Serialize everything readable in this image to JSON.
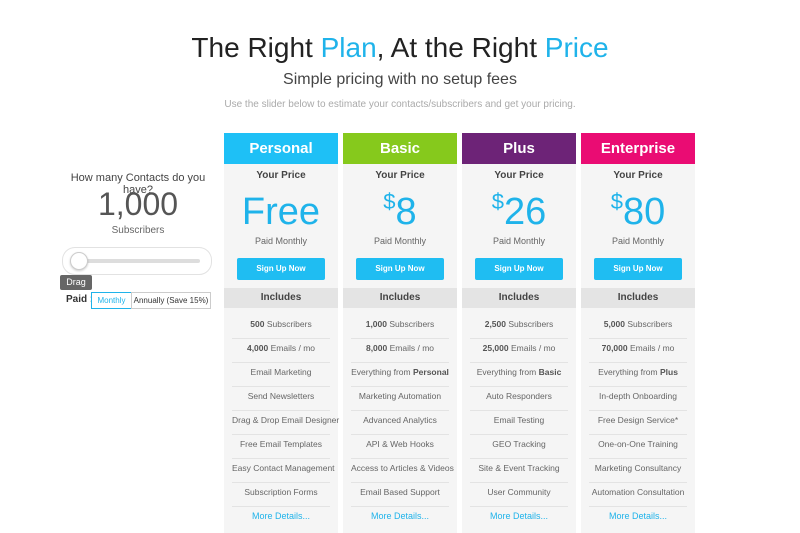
{
  "header": {
    "title": [
      {
        "text": "The Right"
      },
      {
        "text": "Plan",
        "highlight": true
      },
      {
        "text": ", At the Right"
      },
      {
        "text": "Price",
        "highlight": true
      }
    ],
    "subtitle": "Simple pricing with no setup fees",
    "note": "Use the slider below to estimate your contacts/subscribers and get your pricing."
  },
  "calculator": {
    "question": "How many Contacts do you have?",
    "count": "1,000",
    "unit": "Subscribers",
    "drag_label": "Drag",
    "paid_label": "Paid :",
    "options": [
      "Monthly",
      "Annually (Save 15%)"
    ]
  },
  "plans": [
    {
      "name": "Personal",
      "color": "#1ec0f6",
      "price_label": "Your Price",
      "price": {
        "amount": "Free"
      },
      "billing": "Paid Monthly",
      "button": "Sign Up Now",
      "includes": "Includes",
      "features": [
        [
          {
            "text": "500",
            "bold": true
          },
          {
            "text": "Subscribers"
          }
        ],
        [
          {
            "text": "4,000",
            "bold": true
          },
          {
            "text": "Emails / mo"
          }
        ],
        [
          {
            "text": "Email Marketing"
          }
        ],
        [
          {
            "text": "Send Newsletters"
          }
        ],
        [
          {
            "text": "Drag & Drop Email Designer"
          }
        ],
        [
          {
            "text": "Free Email Templates"
          }
        ],
        [
          {
            "text": "Easy Contact Management"
          }
        ],
        [
          {
            "text": "Subscription Forms"
          }
        ]
      ],
      "more": "More Details..."
    },
    {
      "name": "Basic",
      "color": "#86c91c",
      "price_label": "Your Price",
      "price": {
        "currency": "$",
        "amount": "8"
      },
      "billing": "Paid Monthly",
      "button": "Sign Up Now",
      "includes": "Includes",
      "features": [
        [
          {
            "text": "1,000",
            "bold": true
          },
          {
            "text": "Subscribers"
          }
        ],
        [
          {
            "text": "8,000",
            "bold": true
          },
          {
            "text": "Emails / mo"
          }
        ],
        [
          {
            "text": "Everything from"
          },
          {
            "text": "Personal",
            "bold": true
          }
        ],
        [
          {
            "text": "Marketing Automation"
          }
        ],
        [
          {
            "text": "Advanced Analytics"
          }
        ],
        [
          {
            "text": "API & Web Hooks"
          }
        ],
        [
          {
            "text": "Access to Articles & Videos"
          }
        ],
        [
          {
            "text": "Email Based Support"
          }
        ]
      ],
      "more": "More Details..."
    },
    {
      "name": "Plus",
      "color": "#6d2377",
      "price_label": "Your Price",
      "price": {
        "currency": "$",
        "amount": "26"
      },
      "billing": "Paid Monthly",
      "button": "Sign Up Now",
      "includes": "Includes",
      "features": [
        [
          {
            "text": "2,500",
            "bold": true
          },
          {
            "text": "Subscribers"
          }
        ],
        [
          {
            "text": "25,000",
            "bold": true
          },
          {
            "text": "Emails / mo"
          }
        ],
        [
          {
            "text": "Everything from"
          },
          {
            "text": "Basic",
            "bold": true
          }
        ],
        [
          {
            "text": "Auto Responders"
          }
        ],
        [
          {
            "text": "Email Testing"
          }
        ],
        [
          {
            "text": "GEO Tracking"
          }
        ],
        [
          {
            "text": "Site & Event Tracking"
          }
        ],
        [
          {
            "text": "User Community"
          }
        ]
      ],
      "more": "More Details..."
    },
    {
      "name": "Enterprise",
      "color": "#ea0c73",
      "price_label": "Your Price",
      "price": {
        "currency": "$",
        "amount": "80"
      },
      "billing": "Paid Monthly",
      "button": "Sign Up Now",
      "includes": "Includes",
      "features": [
        [
          {
            "text": "5,000",
            "bold": true
          },
          {
            "text": "Subscribers"
          }
        ],
        [
          {
            "text": "70,000",
            "bold": true
          },
          {
            "text": "Emails / mo"
          }
        ],
        [
          {
            "text": "Everything from"
          },
          {
            "text": "Plus",
            "bold": true
          }
        ],
        [
          {
            "text": "In-depth Onboarding"
          }
        ],
        [
          {
            "text": "Free Design Service*"
          }
        ],
        [
          {
            "text": "One-on-One Training"
          }
        ],
        [
          {
            "text": "Marketing Consultancy"
          }
        ],
        [
          {
            "text": "Automation Consultation"
          }
        ]
      ],
      "more": "More Details..."
    }
  ]
}
